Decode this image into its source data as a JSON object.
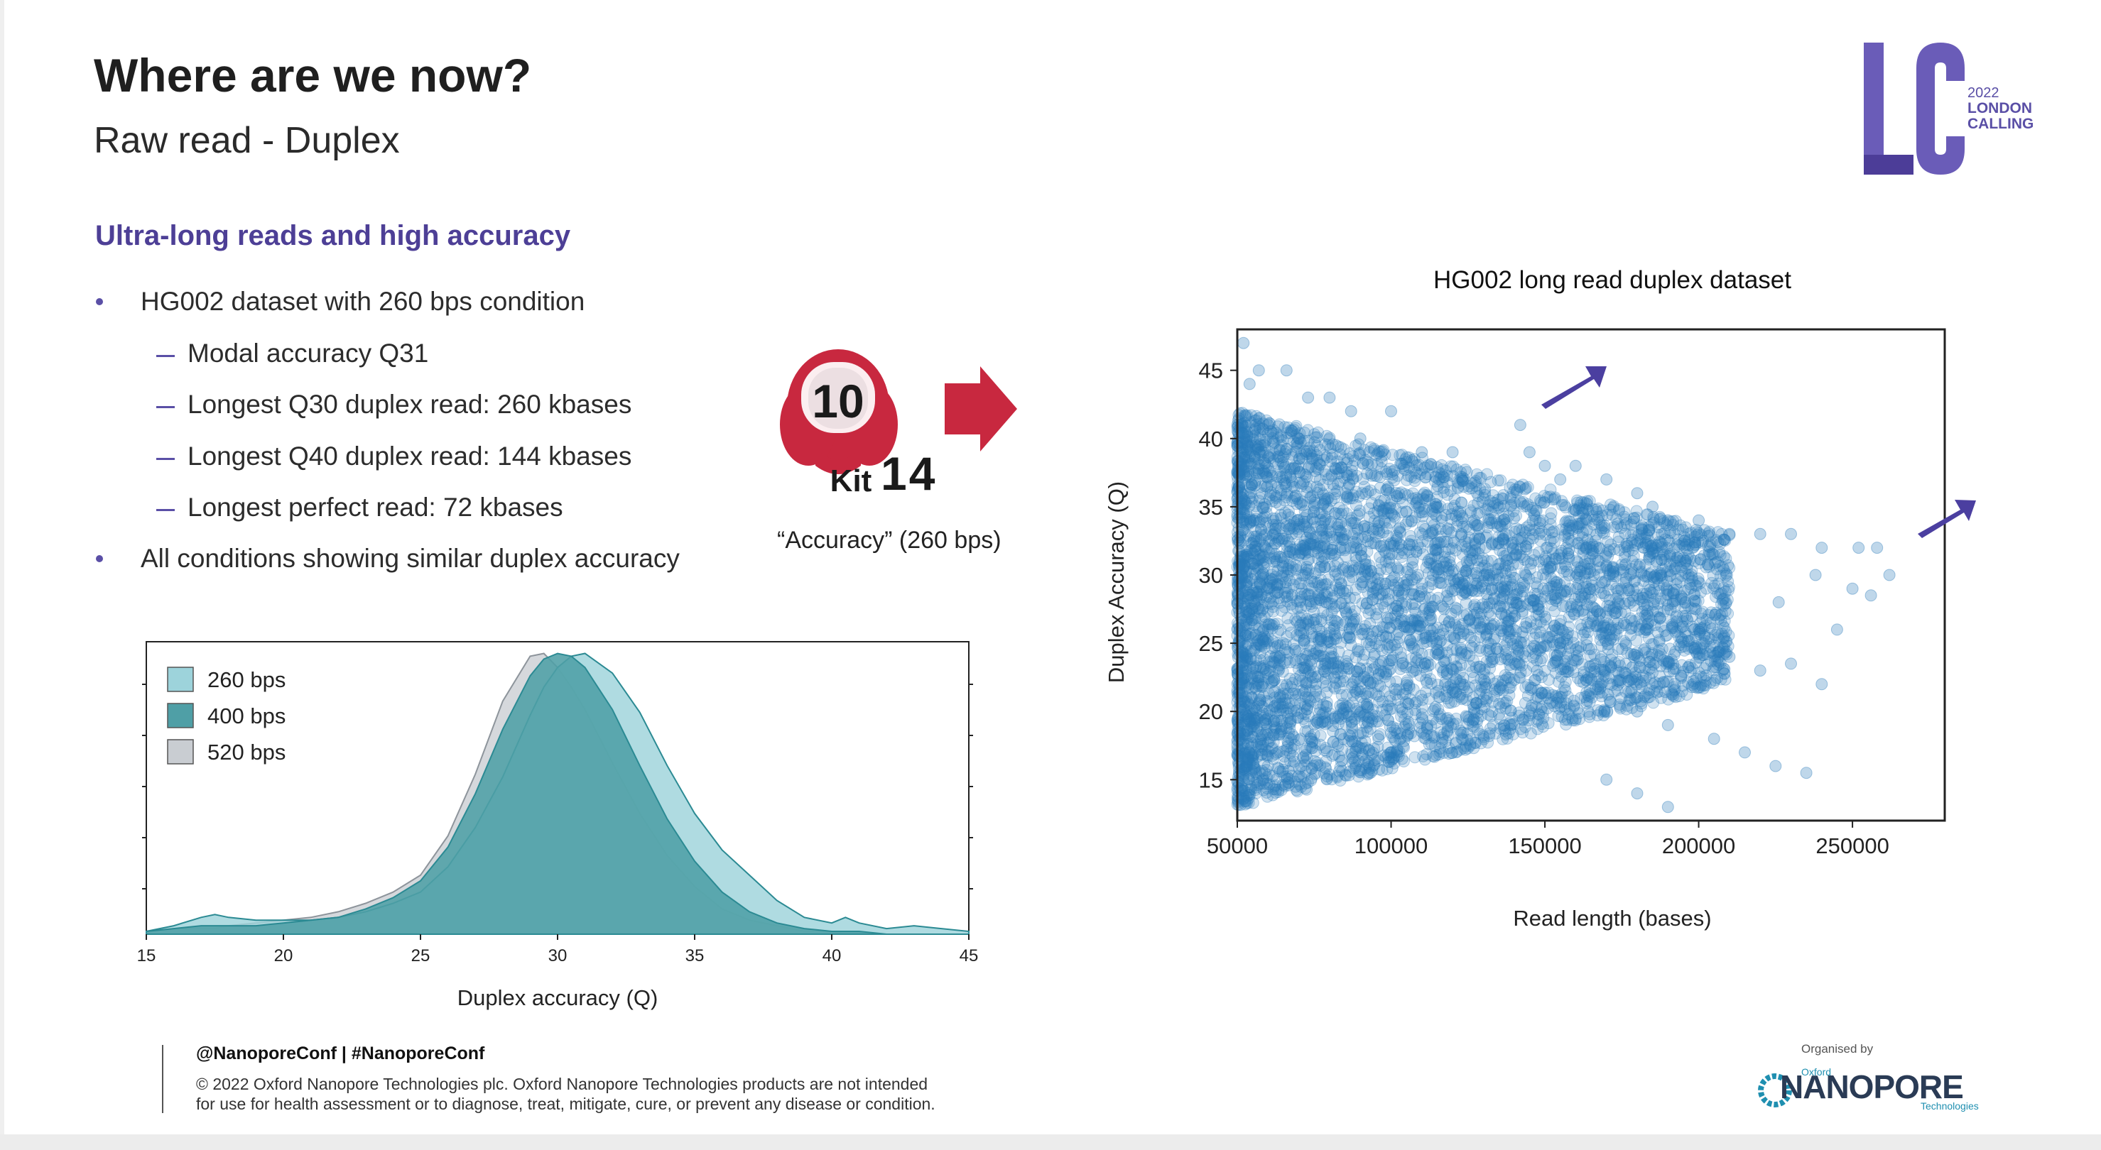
{
  "slide": {
    "title": "Where are we now?",
    "subtitle": "Raw read - Duplex",
    "section_heading": "Ultra-long reads and high accuracy",
    "bullets": [
      {
        "level": 1,
        "text": "HG002 dataset with 260 bps condition"
      },
      {
        "level": 2,
        "text": "Modal accuracy Q31"
      },
      {
        "level": 2,
        "text": "Longest Q30 duplex read: 260 kbases"
      },
      {
        "level": 2,
        "text": "Longest Q40 duplex read: 144 kbases"
      },
      {
        "level": 2,
        "text": "Longest perfect read: 72 kbases"
      },
      {
        "level": 1,
        "text": "All conditions showing similar duplex accuracy"
      }
    ],
    "kit": {
      "number": "10",
      "word": "Kit",
      "kit_number": "14",
      "caption": "“Accuracy” (260 bps)"
    },
    "footer": {
      "handle": "@NanoporeConf | #NanoporeConf",
      "copyright_line1": "© 2022 Oxford Nanopore Technologies plc. Oxford Nanopore Technologies products are not intended",
      "copyright_line2": "for use for health assessment or to diagnose, treat, mitigate, cure, or prevent any disease or condition."
    },
    "organiser": {
      "label": "Organised by",
      "small": "Oxford",
      "name": "NANOPORE",
      "tagline": "Technologies"
    },
    "event_logo": {
      "letters": "LC",
      "year": "2022",
      "line1": "LONDON",
      "line2": "CALLING"
    },
    "colors": {
      "accent_purple": "#5a4fa6",
      "kit_red": "#c8283f",
      "scatter_blue": "#2b7bb9"
    }
  },
  "chart_data": [
    {
      "type": "area",
      "title": "",
      "xlabel": "Duplex accuracy (Q)",
      "ylabel": "",
      "xlim": [
        15,
        45
      ],
      "xticks": [
        15,
        20,
        25,
        30,
        35,
        40,
        45
      ],
      "legend_position": "top-left",
      "x": [
        15,
        16,
        17,
        17.5,
        18,
        19,
        20,
        21,
        22,
        23,
        24,
        25,
        26,
        27,
        28,
        29,
        29.5,
        30,
        30.5,
        31,
        32,
        33,
        34,
        35,
        36,
        37,
        38,
        39,
        40,
        40.5,
        41,
        42,
        43,
        44,
        45
      ],
      "series": [
        {
          "name": "260 bps",
          "color": "#9dd3db",
          "values": [
            0.01,
            0.03,
            0.06,
            0.07,
            0.06,
            0.05,
            0.05,
            0.05,
            0.06,
            0.08,
            0.11,
            0.15,
            0.24,
            0.38,
            0.56,
            0.78,
            0.88,
            0.95,
            0.99,
            1.0,
            0.93,
            0.79,
            0.6,
            0.43,
            0.3,
            0.21,
            0.12,
            0.06,
            0.04,
            0.06,
            0.04,
            0.02,
            0.03,
            0.02,
            0.01
          ]
        },
        {
          "name": "400 bps",
          "color": "#4f9fa6",
          "values": [
            0.01,
            0.02,
            0.03,
            0.03,
            0.03,
            0.03,
            0.04,
            0.05,
            0.06,
            0.09,
            0.13,
            0.19,
            0.31,
            0.5,
            0.73,
            0.92,
            0.98,
            1.0,
            0.99,
            0.95,
            0.8,
            0.6,
            0.41,
            0.26,
            0.15,
            0.08,
            0.04,
            0.02,
            0.01,
            0.01,
            0.01,
            0.0,
            0.0,
            0.0,
            0.0
          ]
        },
        {
          "name": "520 bps",
          "color": "#c9cdd2",
          "values": [
            0.01,
            0.02,
            0.02,
            0.02,
            0.03,
            0.04,
            0.05,
            0.06,
            0.08,
            0.11,
            0.15,
            0.21,
            0.35,
            0.57,
            0.83,
            0.99,
            1.0,
            0.95,
            0.88,
            0.8,
            0.61,
            0.43,
            0.28,
            0.17,
            0.09,
            0.05,
            0.03,
            0.01,
            0.01,
            0.0,
            0.0,
            0.0,
            0.0,
            0.0,
            0.0
          ]
        }
      ]
    },
    {
      "type": "scatter",
      "title": "HG002 long read duplex dataset",
      "xlabel": "Read length (bases)",
      "ylabel": "Duplex Accuracy (Q)",
      "xlim": [
        50000,
        280000
      ],
      "ylim": [
        12,
        48
      ],
      "xticks": [
        50000,
        100000,
        150000,
        200000,
        250000
      ],
      "yticks": [
        15,
        20,
        25,
        30,
        35,
        40,
        45
      ],
      "color": "#2b7bb9",
      "sample_points": [
        [
          52000,
          47
        ],
        [
          54000,
          44
        ],
        [
          57000,
          45
        ],
        [
          66000,
          45
        ],
        [
          73000,
          43
        ],
        [
          80000,
          43
        ],
        [
          87000,
          42
        ],
        [
          100000,
          42
        ],
        [
          60000,
          41
        ],
        [
          70000,
          40
        ],
        [
          90000,
          40
        ],
        [
          110000,
          39
        ],
        [
          120000,
          39
        ],
        [
          142000,
          41
        ],
        [
          145000,
          39
        ],
        [
          150000,
          38
        ],
        [
          155000,
          37
        ],
        [
          160000,
          38
        ],
        [
          170000,
          37
        ],
        [
          180000,
          36
        ],
        [
          185000,
          35
        ],
        [
          190000,
          34
        ],
        [
          200000,
          34
        ],
        [
          210000,
          33
        ],
        [
          220000,
          33
        ],
        [
          230000,
          33
        ],
        [
          240000,
          32
        ],
        [
          252000,
          32
        ],
        [
          258000,
          32
        ],
        [
          238000,
          30
        ],
        [
          250000,
          29
        ],
        [
          256000,
          28.5
        ],
        [
          262000,
          30
        ],
        [
          226000,
          28
        ],
        [
          245000,
          26
        ],
        [
          200000,
          26
        ],
        [
          210000,
          24
        ],
        [
          220000,
          23
        ],
        [
          230000,
          23.5
        ],
        [
          240000,
          22
        ],
        [
          180000,
          20
        ],
        [
          190000,
          19
        ],
        [
          205000,
          18
        ],
        [
          215000,
          17
        ],
        [
          225000,
          16
        ],
        [
          235000,
          15.5
        ],
        [
          170000,
          15
        ],
        [
          180000,
          14
        ],
        [
          190000,
          13
        ]
      ]
    }
  ]
}
